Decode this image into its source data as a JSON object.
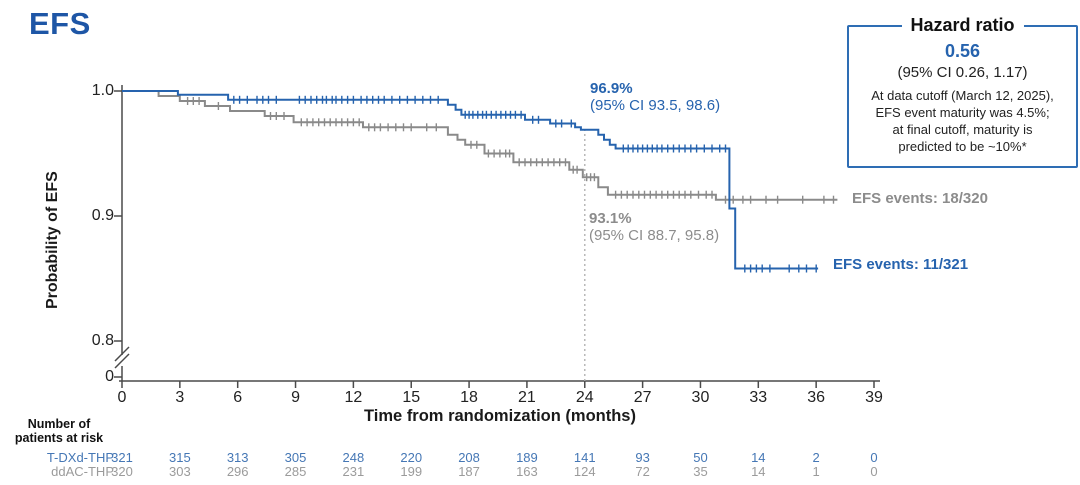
{
  "title": "EFS",
  "colors": {
    "title_blue": "#1E56A6",
    "tdxd_blue": "#2663AE",
    "ddac_gray": "#8A8A8A",
    "risk_blue": "#4577B5",
    "risk_gray": "#9B9B9B",
    "box_border_blue": "#2E6DB4",
    "axis": "#4A4A4A",
    "reference_line": "#ADADAD"
  },
  "hazard_box": {
    "title": "Hazard ratio",
    "value": "0.56",
    "ci": "(95% CI 0.26, 1.17)",
    "note_line1": "At data cutoff (March 12, 2025),",
    "note_line2": "EFS event maturity was 4.5%;",
    "note_line3": "at final cutoff, maturity is",
    "note_line4": "predicted to be ~10%*"
  },
  "annotations": {
    "tdxd_rate": "96.9%",
    "tdxd_ci": "(95% CI 93.5, 98.6)",
    "ddac_rate": "93.1%",
    "ddac_ci": "(95% CI 88.7, 95.8)",
    "tdxd_events": "EFS events: 11/321",
    "ddac_events": "EFS events: 18/320"
  },
  "chart_data": {
    "type": "line",
    "subtype": "kaplan-meier-step",
    "title": "EFS",
    "xlabel": "Time from randomization (months)",
    "ylabel": "Probability of EFS",
    "x_ticks": [
      0,
      3,
      6,
      9,
      12,
      15,
      18,
      21,
      24,
      27,
      30,
      33,
      36,
      39
    ],
    "y_ticks": [
      {
        "label": "1.0",
        "value": 1.0
      },
      {
        "label": "0.9",
        "value": 0.9
      },
      {
        "label": "0.8",
        "value": 0.8
      },
      {
        "label": "0",
        "value": 0
      }
    ],
    "y_axis_break": true,
    "xlim": [
      0,
      39
    ],
    "ylim_upper_segment": [
      0.8,
      1.0
    ],
    "reference_line_x": 24,
    "landmark_24mo": {
      "T-DXd-THP": 0.969,
      "ddAC-THP": 0.931
    },
    "series": [
      {
        "name": "T-DXd-THP",
        "color": "#2663AE",
        "end_month": 36.1,
        "steps": [
          [
            0,
            1.0
          ],
          [
            2.9,
            0.997
          ],
          [
            5.5,
            0.993
          ],
          [
            16.9,
            0.989
          ],
          [
            17.3,
            0.985
          ],
          [
            17.6,
            0.981
          ],
          [
            20.9,
            0.977
          ],
          [
            22.2,
            0.974
          ],
          [
            23.5,
            0.971
          ],
          [
            23.8,
            0.969
          ],
          [
            24.7,
            0.965
          ],
          [
            25.0,
            0.961
          ],
          [
            25.3,
            0.957
          ],
          [
            25.6,
            0.954
          ],
          [
            31.5,
            0.906
          ],
          [
            31.8,
            0.858
          ]
        ],
        "censor_months": [
          5.8,
          6.1,
          6.5,
          7.0,
          7.3,
          7.6,
          8.0,
          9.2,
          9.5,
          9.8,
          10.1,
          10.4,
          10.6,
          10.9,
          11.1,
          11.4,
          11.7,
          12.0,
          12.4,
          12.7,
          13.0,
          13.3,
          13.6,
          14.0,
          14.4,
          14.8,
          15.2,
          15.6,
          16.0,
          16.4,
          17.8,
          18.0,
          18.2,
          18.45,
          18.7,
          18.9,
          19.15,
          19.4,
          19.65,
          19.9,
          20.15,
          20.4,
          20.7,
          21.3,
          21.6,
          22.5,
          22.8,
          23.3,
          26.0,
          26.25,
          26.5,
          26.75,
          27.0,
          27.25,
          27.5,
          27.75,
          28.0,
          28.3,
          28.6,
          28.9,
          29.2,
          29.5,
          29.8,
          30.2,
          30.6,
          31.0,
          31.3,
          32.3,
          32.6,
          32.9,
          33.2,
          33.6,
          34.6,
          35.1,
          35.5,
          36.0
        ]
      },
      {
        "name": "ddAC-THP",
        "color": "#8A8A8A",
        "end_month": 37.1,
        "steps": [
          [
            0,
            1.0
          ],
          [
            1.9,
            0.996
          ],
          [
            3.0,
            0.992
          ],
          [
            4.3,
            0.988
          ],
          [
            5.6,
            0.984
          ],
          [
            7.4,
            0.98
          ],
          [
            8.9,
            0.975
          ],
          [
            12.5,
            0.971
          ],
          [
            16.9,
            0.965
          ],
          [
            17.4,
            0.961
          ],
          [
            17.8,
            0.957
          ],
          [
            18.8,
            0.95
          ],
          [
            20.3,
            0.943
          ],
          [
            23.2,
            0.937
          ],
          [
            23.9,
            0.931
          ],
          [
            24.7,
            0.923
          ],
          [
            25.2,
            0.917
          ],
          [
            30.8,
            0.913
          ]
        ],
        "censor_months": [
          3.4,
          3.7,
          4.0,
          5.0,
          7.7,
          8.0,
          8.4,
          9.3,
          9.6,
          9.9,
          10.2,
          10.5,
          10.8,
          11.1,
          11.4,
          11.7,
          12.0,
          12.3,
          12.8,
          13.1,
          13.4,
          13.8,
          14.2,
          14.6,
          15.0,
          15.8,
          16.3,
          18.1,
          18.4,
          19.0,
          19.3,
          19.6,
          19.9,
          20.1,
          20.6,
          20.9,
          21.2,
          21.5,
          21.8,
          22.1,
          22.4,
          22.7,
          23.0,
          23.4,
          23.6,
          24.1,
          24.3,
          24.5,
          25.6,
          25.9,
          26.2,
          26.5,
          26.8,
          27.1,
          27.4,
          27.7,
          28.0,
          28.3,
          28.6,
          28.9,
          29.2,
          29.5,
          29.9,
          30.3,
          30.6,
          31.3,
          31.7,
          32.2,
          32.6,
          33.4,
          34.0,
          35.3,
          36.4,
          36.9
        ]
      }
    ]
  },
  "risk_table": {
    "header_line1": "Number of",
    "header_line2": "patients at risk",
    "rows": [
      {
        "label": "T-DXd-THP",
        "counts": [
          321,
          315,
          313,
          305,
          248,
          220,
          208,
          189,
          141,
          93,
          50,
          14,
          2,
          0
        ]
      },
      {
        "label": "ddAC-THP",
        "counts": [
          320,
          303,
          296,
          285,
          231,
          199,
          187,
          163,
          124,
          72,
          35,
          14,
          1,
          0
        ]
      }
    ]
  }
}
